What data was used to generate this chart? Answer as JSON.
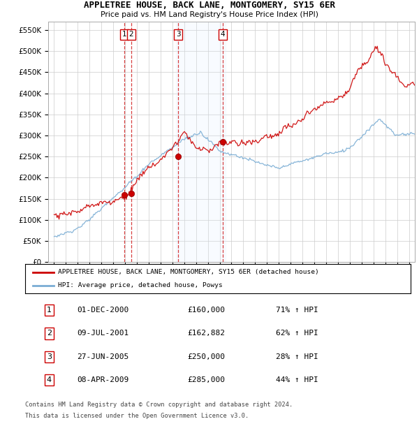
{
  "title1": "APPLETREE HOUSE, BACK LANE, MONTGOMERY, SY15 6ER",
  "title2": "Price paid vs. HM Land Registry's House Price Index (HPI)",
  "ylabel_ticks": [
    "£0",
    "£50K",
    "£100K",
    "£150K",
    "£200K",
    "£250K",
    "£300K",
    "£350K",
    "£400K",
    "£450K",
    "£500K",
    "£550K"
  ],
  "ylabel_values": [
    0,
    50000,
    100000,
    150000,
    200000,
    250000,
    300000,
    350000,
    400000,
    450000,
    500000,
    550000
  ],
  "xlim": [
    1994.5,
    2025.5
  ],
  "ylim": [
    0,
    570000
  ],
  "legend_line1": "APPLETREE HOUSE, BACK LANE, MONTGOMERY, SY15 6ER (detached house)",
  "legend_line2": "HPI: Average price, detached house, Powys",
  "transactions": [
    {
      "num": 1,
      "date": "01-DEC-2000",
      "price": "£160,000",
      "pct": "71% ↑ HPI",
      "year": 2000.92,
      "val": 160000
    },
    {
      "num": 2,
      "date": "09-JUL-2001",
      "price": "£162,882",
      "pct": "62% ↑ HPI",
      "year": 2001.52,
      "val": 162882
    },
    {
      "num": 3,
      "date": "27-JUN-2005",
      "price": "£250,000",
      "pct": "28% ↑ HPI",
      "year": 2005.49,
      "val": 250000
    },
    {
      "num": 4,
      "date": "08-APR-2009",
      "price": "£285,000",
      "pct": "44% ↑ HPI",
      "year": 2009.27,
      "val": 285000
    }
  ],
  "footer1": "Contains HM Land Registry data © Crown copyright and database right 2024.",
  "footer2": "This data is licensed under the Open Government Licence v3.0.",
  "red_color": "#cc0000",
  "blue_color": "#7aadd4",
  "shaded_color": "#ddeeff",
  "bg_color": "#ffffff",
  "grid_color": "#cccccc",
  "shaded_spans": [
    [
      2005.3,
      2009.5
    ]
  ]
}
